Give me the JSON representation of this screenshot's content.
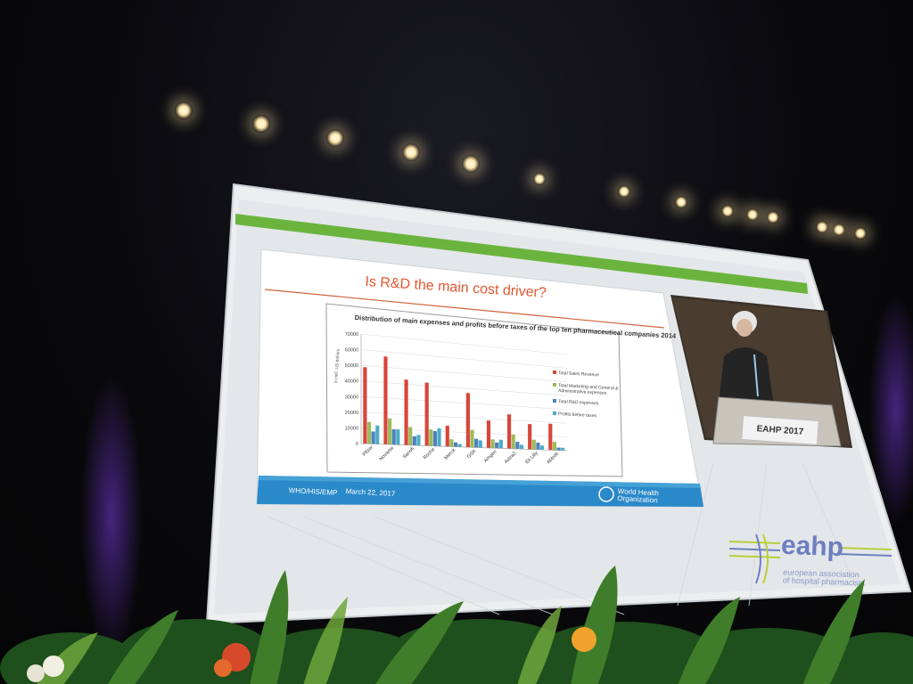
{
  "slide": {
    "title": "Is R&D the main cost driver?",
    "footer_left": "WHO/HIS/EMP",
    "footer_date": "March 22, 2017",
    "footer_org_line1": "World Health",
    "footer_org_line2": "Organization"
  },
  "chart_data": {
    "type": "bar",
    "title": "Distribution of main expenses and profits before taxes of the top ten pharmaceutical companies 2014",
    "ylabel": "in mill. US dollars",
    "ylim": [
      0,
      70000
    ],
    "yticks": [
      "0",
      "10000",
      "20000",
      "30000",
      "40000",
      "50000",
      "60000",
      "70000"
    ],
    "categories": [
      "Pfizer",
      "Novartis",
      "Sanofi",
      "Roche",
      "Merck",
      "GSK",
      "Amgen",
      "AstraZ.",
      "Eli Lilly",
      "Abbott"
    ],
    "series": [
      {
        "name": "Total Sales Revenue",
        "color": "#d9453a",
        "values": [
          49000,
          57000,
          43000,
          42000,
          14000,
          37000,
          19000,
          24000,
          18000,
          19000
        ]
      },
      {
        "name": "Total Marketing and General & Administrative expenses",
        "color": "#9bbb59",
        "values": [
          14000,
          17000,
          12000,
          11000,
          5000,
          12000,
          6000,
          10000,
          7000,
          6000
        ]
      },
      {
        "name": "Total R&D expenses",
        "color": "#4f81bd",
        "values": [
          8000,
          10000,
          6000,
          10000,
          3000,
          6000,
          4000,
          5000,
          5000,
          2000
        ]
      },
      {
        "name": "Profits before taxes",
        "color": "#4bacc6",
        "values": [
          12000,
          10000,
          7000,
          12000,
          2000,
          5000,
          6000,
          3000,
          3000,
          2000
        ]
      }
    ],
    "legend": "right"
  },
  "stage": {
    "podium_sign": "EAHP 2017",
    "logo_text": "eahp",
    "logo_sub_line1": "european association",
    "logo_sub_line2": "of hospital pharmacists"
  }
}
